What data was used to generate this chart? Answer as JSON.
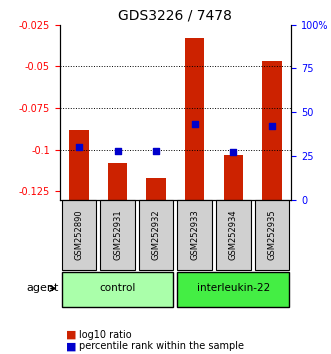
{
  "title": "GDS3226 / 7478",
  "samples": [
    "GSM252890",
    "GSM252931",
    "GSM252932",
    "GSM252933",
    "GSM252934",
    "GSM252935"
  ],
  "log10_ratio": [
    -0.088,
    -0.108,
    -0.117,
    -0.033,
    -0.103,
    -0.047
  ],
  "percentile_rank": [
    30,
    28,
    28,
    43,
    27,
    42
  ],
  "ylim_left": [
    -0.13,
    -0.025
  ],
  "ylim_right": [
    0,
    100
  ],
  "yticks_left": [
    -0.125,
    -0.1,
    -0.075,
    -0.05,
    -0.025
  ],
  "yticks_right": [
    0,
    25,
    50,
    75,
    100
  ],
  "ytick_labels_left": [
    "-0.125",
    "-0.1",
    "-0.075",
    "-0.05",
    "-0.025"
  ],
  "ytick_labels_right": [
    "0",
    "25",
    "50",
    "75",
    "100%"
  ],
  "bar_color": "#cc2200",
  "dot_color": "#0000cc",
  "control_color": "#aaffaa",
  "interleukin_color": "#44ee44",
  "control_samples": [
    0,
    1,
    2
  ],
  "interleukin_samples": [
    3,
    4,
    5
  ],
  "control_label": "control",
  "interleukin_label": "interleukin-22",
  "agent_label": "agent",
  "legend_bar_label": "log10 ratio",
  "legend_dot_label": "percentile rank within the sample",
  "grid_yticks": [
    -0.05,
    -0.075,
    -0.1
  ],
  "bar_width": 0.5,
  "xlabel_color": "#000000",
  "title_color": "#000000"
}
